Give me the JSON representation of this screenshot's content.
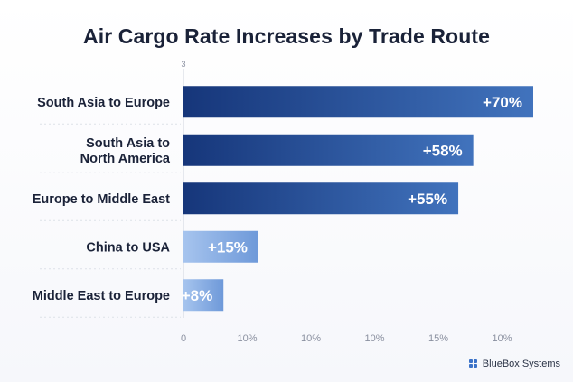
{
  "chart_data": {
    "type": "bar",
    "orientation": "horizontal",
    "title": "Air Cargo Rate Increases by Trade Route",
    "categories": [
      [
        "South Asia to Europe"
      ],
      [
        "South Asia to",
        "North America"
      ],
      [
        "Europe to Middle East"
      ],
      [
        "China to USA"
      ],
      [
        "Middle East to Europe"
      ]
    ],
    "values": [
      70,
      58,
      55,
      15,
      8
    ],
    "data_labels": [
      "+70%",
      "+58%",
      "+55%",
      "+15%",
      "+8%"
    ],
    "x_tick_labels": [
      "0",
      "10%",
      "10%",
      "10%",
      "15%",
      "10%"
    ],
    "axis_top_marker": "3",
    "grid": false,
    "colors": {
      "dark_start": "#16367a",
      "dark_end": "#4173bd",
      "light_start": "#a6c4ee",
      "light_end": "#6e99d9",
      "label": "#1a2238",
      "tick": "#8a90a0",
      "axis": "#cfd4de"
    }
  },
  "brand": {
    "name": "BlueBox Systems",
    "icon": "four-square-logo-icon"
  }
}
